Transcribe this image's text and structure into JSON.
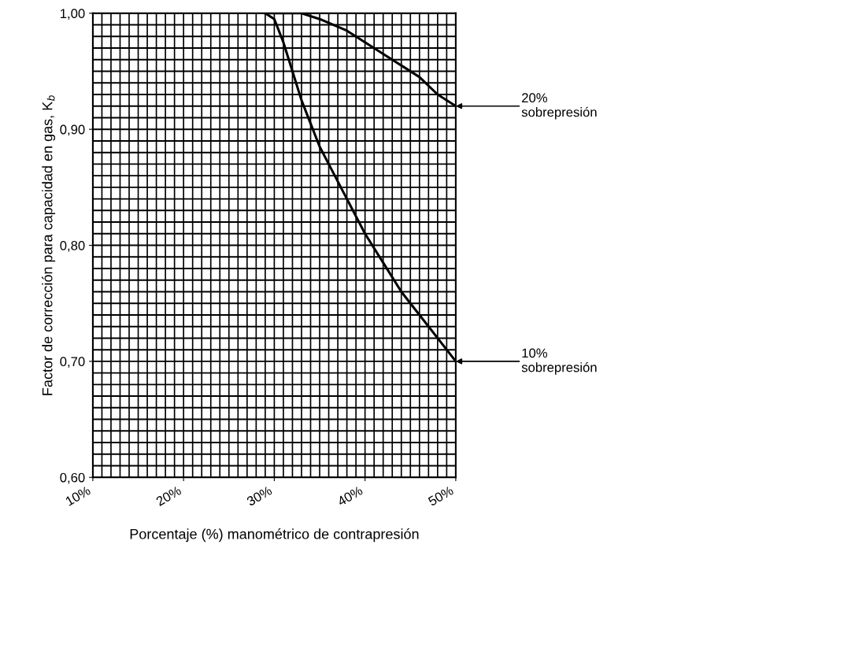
{
  "chart_data": {
    "type": "line",
    "xlabel": "Porcentaje (%) manométrico de contrapresión",
    "ylabel": "Factor de corrección para capacidad en gas, K$_{b}$",
    "series": [
      {
        "color": "#000000",
        "x": [
          29,
          33,
          35,
          38,
          40,
          42,
          44,
          46,
          48,
          50
        ],
        "values": [
          1.0,
          1.0,
          0.995,
          0.985,
          0.975,
          0.965,
          0.955,
          0.945,
          0.93,
          0.92
        ]
      },
      {
        "color": "#000000",
        "x": [
          29,
          30,
          31,
          32,
          33,
          34,
          35,
          36,
          38,
          40,
          42,
          44,
          46,
          48,
          50
        ],
        "values": [
          1.0,
          0.995,
          0.975,
          0.95,
          0.925,
          0.905,
          0.885,
          0.87,
          0.84,
          0.81,
          0.785,
          0.76,
          0.74,
          0.72,
          0.7
        ]
      }
    ],
    "annotations": [
      "20%\nsobrepresión",
      "10%\nsobrepresión"
    ],
    "xlim": [
      10,
      50
    ],
    "ylim": [
      0.6,
      1.0
    ],
    "xticks": [
      {
        "value": 10,
        "label": "10%"
      },
      {
        "value": 20,
        "label": "20%"
      },
      {
        "value": 30,
        "label": "30%"
      },
      {
        "value": 40,
        "label": "40%"
      },
      {
        "value": 50,
        "label": "50%"
      }
    ],
    "yticks": [
      {
        "value": 0.6,
        "label": "0,60"
      },
      {
        "value": 0.7,
        "label": "0,70"
      },
      {
        "value": 0.8,
        "label": "0,80"
      },
      {
        "value": 0.9,
        "label": "0,90"
      },
      {
        "value": 1.0,
        "label": "1,00"
      }
    ],
    "grid": true,
    "marker": "none",
    "line_style": "solid"
  }
}
